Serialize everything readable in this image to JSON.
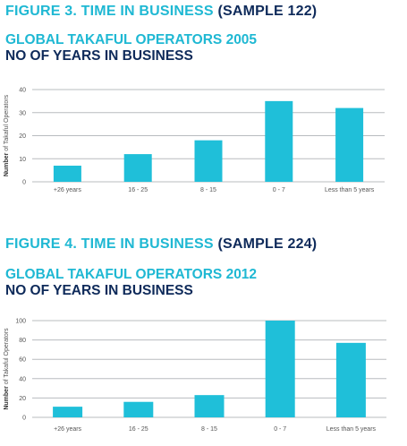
{
  "colors": {
    "teal": "#1fb8d3",
    "navy": "#0e2a5a",
    "bar": "#1fbfd9",
    "grid": "#b8bcbf"
  },
  "chart_data": [
    {
      "type": "bar",
      "figure_label": "FIGURE 3. TIME IN BUSINESS",
      "sample_label": "(SAMPLE 122)",
      "title": "GLOBAL TAKAFUL OPERATORS 2005",
      "subtitle": "NO OF YEARS IN BUSINESS",
      "ylabel_bold": "Number",
      "ylabel_rest": "of Takaful Operators",
      "xlabel": "",
      "categories": [
        "+26 years",
        "16 - 25",
        "8 - 15",
        "0 - 7",
        "Less than 5 years"
      ],
      "values": [
        7,
        12,
        18,
        35,
        32
      ],
      "ylim": [
        0,
        40
      ],
      "yticks": [
        0,
        10,
        20,
        30,
        40
      ],
      "grid": true
    },
    {
      "type": "bar",
      "figure_label": "FIGURE 4. TIME IN BUSINESS",
      "sample_label": "(SAMPLE 224)",
      "title": "GLOBAL TAKAFUL OPERATORS 2012",
      "subtitle": "NO OF YEARS IN BUSINESS",
      "ylabel_bold": "Number",
      "ylabel_rest": "of Takaful Operators",
      "xlabel": "",
      "categories": [
        "+26 years",
        "16 - 25",
        "8 - 15",
        "0 - 7",
        "Less than 5 years"
      ],
      "values": [
        11,
        16,
        23,
        100,
        77
      ],
      "ylim": [
        0,
        100
      ],
      "yticks": [
        0,
        20,
        40,
        60,
        80,
        100
      ],
      "grid": true
    }
  ]
}
